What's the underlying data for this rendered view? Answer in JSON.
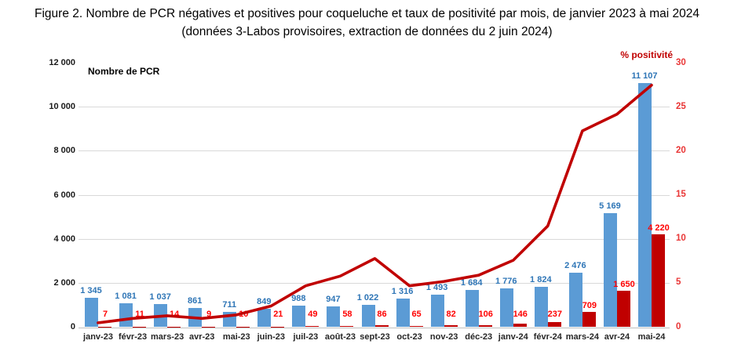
{
  "title": {
    "line1": "Figure 2. Nombre de PCR négatives et positives pour coqueluche et taux de positivité par mois, de janvier 2023 à mai 2024",
    "line2": "(données 3-Labos provisoires, extraction de données du 2 juin 2024)"
  },
  "chart_data": {
    "type": "bar",
    "subtype": "grouped bars with overlaid line on secondary axis",
    "categories": [
      "janv-23",
      "févr-23",
      "mars-23",
      "avr-23",
      "mai-23",
      "juin-23",
      "juil-23",
      "août-23",
      "sept-23",
      "oct-23",
      "nov-23",
      "déc-23",
      "janv-24",
      "févr-24",
      "mars-24",
      "avr-24",
      "mai-24"
    ],
    "series": [
      {
        "name": "PCR négatives",
        "type": "bar",
        "axis": "left",
        "color": "#5b9bd5",
        "values": [
          1345,
          1081,
          1037,
          861,
          711,
          849,
          988,
          947,
          1022,
          1316,
          1493,
          1684,
          1776,
          1824,
          2476,
          5169,
          11107
        ],
        "labels": [
          "1 345",
          "1 081",
          "1 037",
          "861",
          "711",
          "849",
          "988",
          "947",
          "1 022",
          "1 316",
          "1 493",
          "1 684",
          "1 776",
          "1 824",
          "2 476",
          "5 169",
          "11 107"
        ]
      },
      {
        "name": "PCR positives",
        "type": "bar",
        "axis": "left",
        "color": "#c00000",
        "values": [
          7,
          11,
          14,
          9,
          10,
          21,
          49,
          58,
          86,
          65,
          82,
          106,
          146,
          237,
          709,
          1650,
          4220
        ],
        "labels": [
          "7",
          "11",
          "14",
          "9",
          "10",
          "21",
          "49",
          "58",
          "86",
          "65",
          "82",
          "106",
          "146",
          "237",
          "709",
          "1 650",
          "4 220"
        ]
      },
      {
        "name": "Taux de positivité",
        "type": "line",
        "axis": "right",
        "color": "#c00000",
        "values": [
          0.5,
          1.0,
          1.3,
          1.0,
          1.4,
          2.4,
          4.7,
          5.8,
          7.8,
          4.7,
          5.2,
          5.9,
          7.6,
          11.5,
          22.3,
          24.2,
          27.5
        ]
      }
    ],
    "left_axis": {
      "label": "Nombre de PCR",
      "range": [
        0,
        12000
      ],
      "tick_step": 2000,
      "tick_labels": [
        "0",
        "2 000",
        "4 000",
        "6 000",
        "8 000",
        "10 000",
        "12 000"
      ]
    },
    "right_axis": {
      "label": "% positivité",
      "range": [
        0,
        30
      ],
      "tick_step": 5,
      "tick_labels": [
        "0",
        "5",
        "10",
        "15",
        "20",
        "25",
        "30"
      ]
    },
    "grid": true,
    "legend": false
  },
  "colors": {
    "bar_negative": "#5b9bd5",
    "bar_positive": "#c00000",
    "line": "#c00000",
    "label_blue": "#2e75b6",
    "label_red": "#ff0000",
    "right_tick_text": "#e93636",
    "gridline": "#d9d9d9",
    "axis_line": "#bfbfbf"
  }
}
